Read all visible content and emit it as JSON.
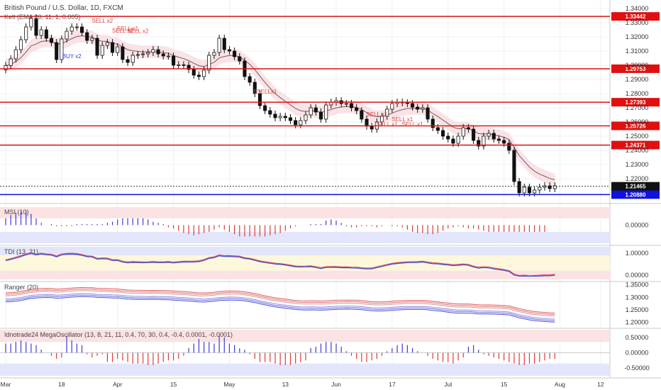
{
  "chart_data": {
    "type": "candlestick",
    "title": "British Pound / U.S. Dollar, 1D, FXCM",
    "overlay_label": "Kelt (EMA 20, 11, 1, 0.005)",
    "x_ticks": [
      {
        "label": "Mar",
        "d": 0
      },
      {
        "label": "18",
        "d": 11
      },
      {
        "label": "Apr",
        "d": 22
      },
      {
        "label": "15",
        "d": 33
      },
      {
        "label": "May",
        "d": 44
      },
      {
        "label": "13",
        "d": 55
      },
      {
        "label": "Jun",
        "d": 65
      },
      {
        "label": "17",
        "d": 76
      },
      {
        "label": "Jul",
        "d": 87
      },
      {
        "label": "15",
        "d": 98
      },
      {
        "label": "Aug",
        "d": 109
      },
      {
        "label": "12",
        "d": 117
      }
    ],
    "price_ticks": [
      "1.34000",
      "1.33000",
      "1.32000",
      "1.31000",
      "1.30000",
      "1.29000",
      "1.28000",
      "1.27000",
      "1.26000",
      "1.25000",
      "1.24000",
      "1.23000",
      "1.22000"
    ],
    "ylim": [
      1.204,
      1.344
    ],
    "levels_red": [
      "1.33442",
      "1.29753",
      "1.27393",
      "1.25726",
      "1.24371"
    ],
    "level_blue": "1.20880",
    "last_price": "1.21465",
    "closes": [
      1.2998,
      1.3045,
      1.311,
      1.318,
      1.327,
      1.333,
      1.321,
      1.325,
      1.319,
      1.316,
      1.304,
      1.3185,
      1.324,
      1.327,
      1.327,
      1.323,
      1.3175,
      1.319,
      1.307,
      1.314,
      1.316,
      1.309,
      1.313,
      1.304,
      1.302,
      1.307,
      1.3075,
      1.308,
      1.309,
      1.311,
      1.308,
      1.3065,
      1.3065,
      1.3,
      1.3003,
      1.3,
      1.297,
      1.293,
      1.292,
      1.2965,
      1.307,
      1.309,
      1.319,
      1.311,
      1.31,
      1.306,
      1.303,
      1.292,
      1.288,
      1.28,
      1.2715,
      1.268,
      1.2655,
      1.263,
      1.264,
      1.263,
      1.261,
      1.258,
      1.261,
      1.265,
      1.27,
      1.267,
      1.262,
      1.272,
      1.274,
      1.275,
      1.273,
      1.273,
      1.27,
      1.268,
      1.262,
      1.257,
      1.255,
      1.26,
      1.264,
      1.269,
      1.273,
      1.274,
      1.2735,
      1.273,
      1.2705,
      1.269,
      1.27,
      1.262,
      1.256,
      1.254,
      1.25,
      1.248,
      1.245,
      1.25,
      1.256,
      1.255,
      1.247,
      1.243,
      1.25,
      1.252,
      1.248,
      1.247,
      1.245,
      1.24,
      1.218,
      1.21,
      1.214,
      1.21,
      1.212,
      1.214,
      1.215,
      1.213,
      1.215
    ],
    "signals": [
      {
        "text": "SELL x2",
        "d": 19,
        "p": 1.33
      },
      {
        "text": "SELL x2",
        "d": 23,
        "p": 1.323
      },
      {
        "text": "SELL x1",
        "d": 24,
        "p": 1.3245
      },
      {
        "text": "SELL x2",
        "d": 26,
        "p": 1.3228
      },
      {
        "text": "BUY x2",
        "d": 13,
        "p": 1.305
      },
      {
        "text": "SSELLx1",
        "d": 51,
        "p": 1.28
      },
      {
        "text": "SELL x1",
        "d": 73,
        "p": 1.264
      },
      {
        "text": "SELL x1",
        "d": 75,
        "p": 1.257
      },
      {
        "text": "SELL x1",
        "d": 78,
        "p": 1.2605
      },
      {
        "text": "SELL x1",
        "d": 80,
        "p": 1.257
      }
    ],
    "panels": [
      {
        "label": "MSI (10)",
        "ticks": [
          "0.00000"
        ]
      },
      {
        "label": "TDI (13, 21)",
        "ticks": [
          "1.00000",
          "0.00000"
        ]
      },
      {
        "label": "Ranger (20)",
        "ticks": [
          "1.35000",
          "1.30000",
          "1.25000",
          "1.20000"
        ]
      },
      {
        "label": "Idnotrade24 MegaOscillator (13, 8, 21, 11, 0.4, 70, 30, 0.4, -0.4, 0.0001, -0.0001)",
        "ticks": [
          "0.50000",
          "0.00000",
          "-0.50000"
        ]
      }
    ],
    "msi": [
      0.3,
      0.45,
      0.55,
      0.6,
      0.62,
      0.5,
      0.3,
      0.1,
      0.0,
      0.05,
      -0.05,
      -0.05,
      -0.05,
      -0.05,
      0.05,
      0.05,
      0.05,
      0.05,
      0.05,
      0.05,
      0.1,
      0.15,
      0.25,
      0.3,
      0.3,
      0.3,
      0.3,
      0.3,
      0.25,
      0.15,
      0.1,
      0.05,
      -0.1,
      -0.15,
      -0.25,
      -0.35,
      -0.4,
      -0.45,
      -0.4,
      -0.35,
      -0.3,
      -0.2,
      -0.1,
      -0.2,
      -0.3,
      -0.4,
      -0.5,
      -0.5,
      -0.5,
      -0.5,
      -0.5,
      -0.5,
      -0.45,
      -0.4,
      -0.35,
      -0.25,
      -0.15,
      -0.05,
      0.0,
      0.0,
      0.05,
      0.05,
      0.05,
      0.2,
      0.25,
      0.2,
      0.1,
      -0.05,
      -0.1,
      -0.1,
      -0.05,
      -0.05,
      -0.05,
      -0.1,
      -0.05,
      0.0,
      -0.05,
      -0.05,
      -0.1,
      -0.2,
      -0.3,
      -0.35,
      -0.35,
      -0.4,
      -0.4,
      -0.35,
      -0.25,
      -0.15,
      -0.1,
      -0.05,
      -0.1,
      -0.15,
      -0.15,
      -0.2,
      -0.25,
      -0.3,
      -0.3,
      -0.3,
      -0.3,
      -0.3,
      -0.3,
      -0.3,
      -0.3,
      -0.3,
      -0.3,
      -0.3,
      -0.3
    ],
    "mega": [
      0.3,
      0.3,
      0.35,
      0.4,
      0.35,
      0.3,
      0.25,
      0.1,
      0.0,
      -0.1,
      -0.2,
      -0.15,
      0.55,
      0.4,
      0.3,
      0.25,
      -0.05,
      -0.15,
      -0.1,
      -0.05,
      -0.3,
      -0.3,
      -0.2,
      -0.25,
      -0.3,
      -0.35,
      -0.35,
      -0.35,
      -0.4,
      -0.4,
      -0.35,
      -0.3,
      -0.25,
      -0.25,
      -0.2,
      -0.1,
      0.15,
      0.3,
      0.45,
      0.35,
      0.35,
      0.3,
      0.55,
      0.5,
      0.3,
      0.25,
      0.15,
      0.1,
      -0.05,
      -0.2,
      -0.3,
      -0.3,
      -0.3,
      -0.35,
      -0.4,
      -0.4,
      -0.4,
      -0.35,
      -0.3,
      -0.25,
      0.15,
      0.2,
      0.3,
      0.35,
      0.35,
      0.3,
      0.2,
      0.05,
      -0.1,
      -0.2,
      -0.3,
      -0.3,
      -0.25,
      -0.2,
      -0.1,
      0.05,
      0.15,
      0.25,
      0.3,
      0.25,
      0.15,
      0.05,
      0.0,
      -0.1,
      -0.2,
      -0.25,
      -0.3,
      -0.3,
      -0.35,
      -0.25,
      -0.15,
      0.2,
      0.25,
      0.1,
      -0.05,
      -0.1,
      -0.15,
      -0.2,
      -0.25,
      -0.3,
      -0.35,
      -0.4,
      -0.4,
      -0.35,
      -0.35,
      -0.3,
      -0.25,
      -0.2,
      -0.2
    ],
    "colors": {
      "up": "#ffffff",
      "down": "#111111",
      "level": "#e01010",
      "blue": "#1010e0",
      "ema": "#7a5a5a"
    }
  }
}
